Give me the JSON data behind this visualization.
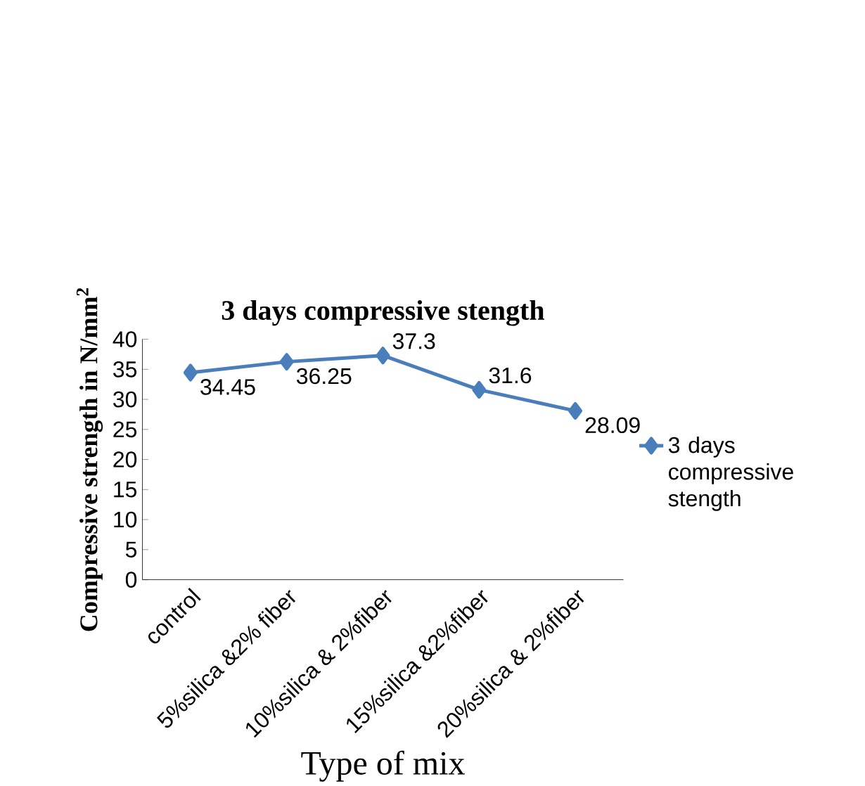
{
  "chart_data": {
    "type": "line",
    "title": "3 days compressive stength",
    "xlabel": "Type of mix",
    "ylabel": "Compressive strength in N/mm$^{2}$",
    "categories": [
      "control",
      "5%silica &2% fiber",
      "10%silica & 2%fiber",
      "15%silica &2%fiber",
      "20%silica & 2%fiber"
    ],
    "series": [
      {
        "name": "3 days compressive stength",
        "color": "#4a7ebb",
        "values": [
          34.45,
          36.25,
          37.3,
          31.6,
          28.09
        ]
      }
    ],
    "ylim": [
      0,
      40
    ],
    "yticks": [
      0,
      5,
      10,
      15,
      20,
      25,
      30,
      35,
      40
    ],
    "grid": false,
    "legend": "right",
    "marker": "diamond",
    "line_style": "solid",
    "data_labels": true
  }
}
